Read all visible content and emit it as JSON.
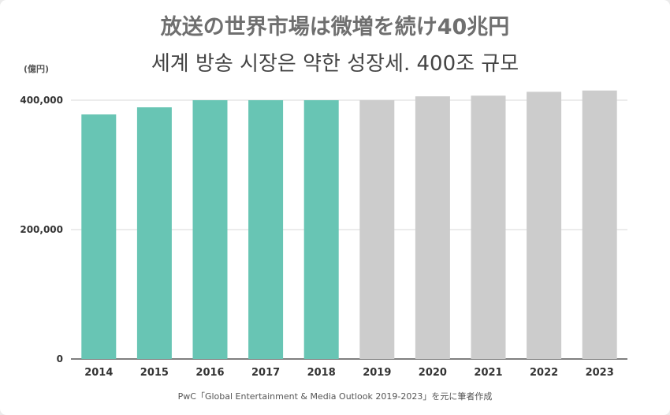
{
  "title": "放送の世界市場は微増を続け40兆円",
  "subtitle": "세계 방송 시장은 약한 성장세. 400조 규모",
  "unit_label": "(億円)",
  "source": "PwC「Global Entertainment & Media Outlook 2019-2023」を元に筆者作成",
  "colors": {
    "actual": "#68c5b4",
    "forecast": "#cccccc",
    "grid": "#d9d9d9",
    "axis": "#333333"
  },
  "chart_data": {
    "type": "bar",
    "categories": [
      "2014",
      "2015",
      "2016",
      "2017",
      "2018",
      "2019",
      "2020",
      "2021",
      "2022",
      "2023"
    ],
    "values": [
      378000,
      389000,
      400000,
      400000,
      400000,
      400000,
      406000,
      407000,
      413000,
      415000
    ],
    "bar_colors": [
      "#68c5b4",
      "#68c5b4",
      "#68c5b4",
      "#68c5b4",
      "#68c5b4",
      "#cccccc",
      "#cccccc",
      "#cccccc",
      "#cccccc",
      "#cccccc"
    ],
    "title": "放送の世界市場は微増を続け40兆円",
    "ylabel": "(億円)",
    "xlabel": "",
    "ylim": [
      0,
      400000
    ],
    "yticks": [
      0,
      200000,
      400000
    ],
    "ytick_labels": [
      "0",
      "200,000",
      "400,000"
    ],
    "grid": true
  }
}
